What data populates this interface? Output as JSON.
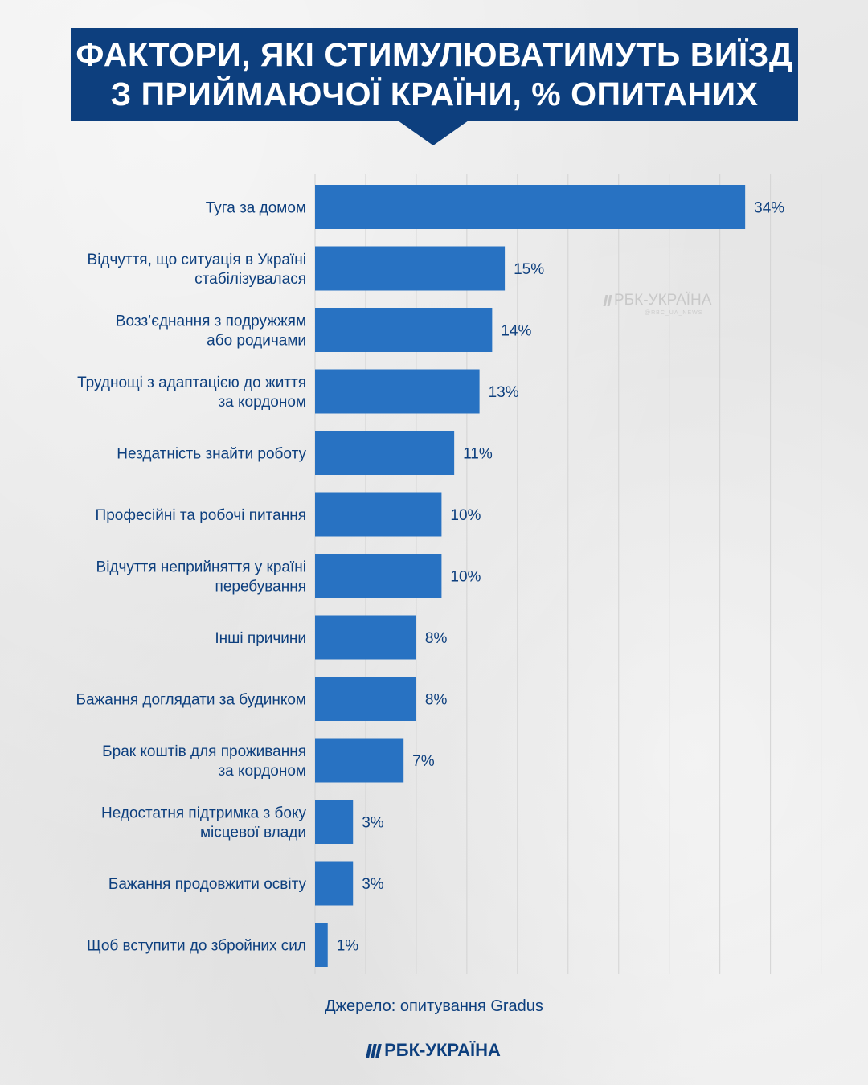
{
  "title": "ФАКТОРИ, ЯКІ СТИМУЛЮВАТИМУТЬ ВИЇЗД\nЗ ПРИЙМАЮЧОЇ КРАЇНИ, % ОПИТАНИХ",
  "watermark": {
    "text": "РБК-УКРАЇНА",
    "sub": "@RBC_UA_NEWS"
  },
  "source": "Джерело: опитування Gradus",
  "brand": "РБК-УКРАЇНА",
  "colors": {
    "bar": "#2872c2",
    "title_bg": "#0d3f7e",
    "text": "#0d3f7e",
    "grid": "#d3d3d3"
  },
  "chart_data": {
    "type": "bar",
    "orientation": "horizontal",
    "categories": [
      "Туга за домом",
      "Відчуття, що ситуація в Україні\nстабілізувалася",
      "Возз’єднання з подружжям\nабо родичами",
      "Труднощі з адаптацією до життя\nза кордоном",
      "Нездатність знайти роботу",
      "Професійні та робочі питання",
      "Відчуття неприйняття у країні\nперебування",
      "Інші причини",
      "Бажання доглядати за будинком",
      "Брак коштів для проживання\nза кордоном",
      "Недостатня підтримка з боку\nмісцевої влади",
      "Бажання продовжити освіту",
      "Щоб вступити до збройних сил"
    ],
    "values": [
      34,
      15,
      14,
      13,
      11,
      10,
      10,
      8,
      8,
      7,
      3,
      3,
      1
    ],
    "value_labels": [
      "34%",
      "15%",
      "14%",
      "13%",
      "11%",
      "10%",
      "10%",
      "8%",
      "8%",
      "7%",
      "3%",
      "3%",
      "1%"
    ],
    "xlim": [
      0,
      40
    ],
    "grid": true
  }
}
